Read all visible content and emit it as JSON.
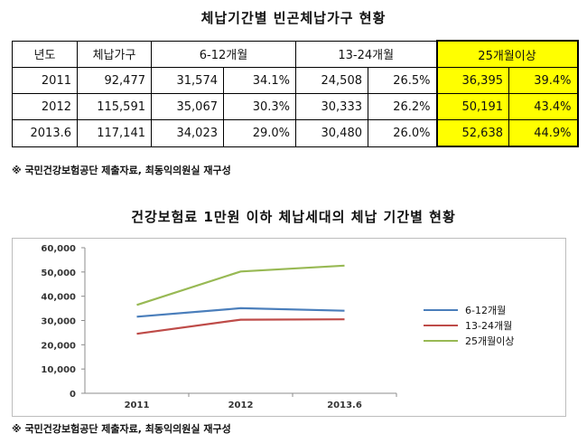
{
  "table": {
    "title": "체납기간별 빈곤체납가구 현황",
    "headers": [
      "년도",
      "체납가구",
      "6-12개월",
      "13-24개월",
      "25개월이상"
    ],
    "rows": [
      {
        "year": "2011",
        "households": "92,477",
        "m6_12": "31,574",
        "m6_12_pct": "34.1%",
        "m13_24": "24,508",
        "m13_24_pct": "26.5%",
        "m25": "36,395",
        "m25_pct": "39.4%"
      },
      {
        "year": "2012",
        "households": "115,591",
        "m6_12": "35,067",
        "m6_12_pct": "30.3%",
        "m13_24": "30,333",
        "m13_24_pct": "26.2%",
        "m25": "50,191",
        "m25_pct": "43.4%"
      },
      {
        "year": "2013.6",
        "households": "117,141",
        "m6_12": "34,023",
        "m6_12_pct": "29.0%",
        "m13_24": "30,480",
        "m13_24_pct": "26.0%",
        "m25": "52,638",
        "m25_pct": "44.9%"
      }
    ],
    "highlight_color": "#ffff00",
    "source": "※ 국민건강보험공단 제출자료, 최동익의원실 재구성"
  },
  "chart_data": {
    "type": "line",
    "title": "건강보험료 1만원 이하 체납세대의 체납 기간별 현황",
    "categories": [
      "2011",
      "2012",
      "2013.6"
    ],
    "series": [
      {
        "name": "6-12개월",
        "values": [
          31574,
          35067,
          34023
        ],
        "color": "#4a7ebb"
      },
      {
        "name": "13-24개월",
        "values": [
          24508,
          30333,
          30480
        ],
        "color": "#be4b48"
      },
      {
        "name": "25개월이상",
        "values": [
          36395,
          50191,
          52638
        ],
        "color": "#98b954"
      }
    ],
    "ylim": [
      0,
      60000
    ],
    "yticks": [
      "0",
      "10,000",
      "20,000",
      "30,000",
      "40,000",
      "50,000",
      "60,000"
    ],
    "grid": false,
    "legend": "right"
  },
  "chart_source": "※ 국민건강보험공단 제출자료, 최동익의원실 재구성"
}
